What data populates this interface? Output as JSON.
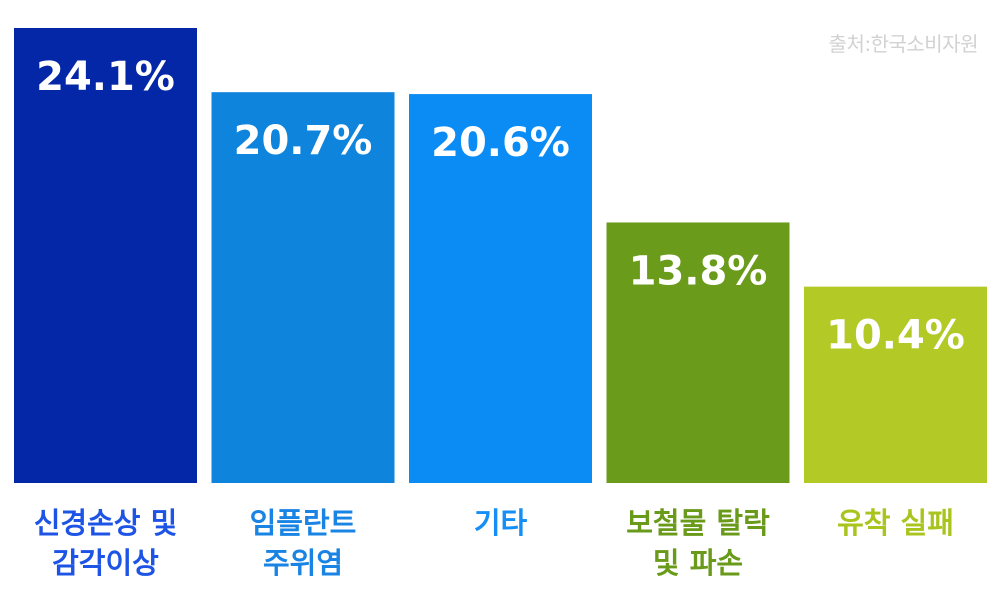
{
  "source_note": "출처:한국소비자원",
  "chart_data": {
    "type": "bar",
    "categories": [
      [
        "신경손상 및",
        "감각이상"
      ],
      [
        "임플란트",
        "주위염"
      ],
      [
        "기타"
      ],
      [
        "보철물 탈락",
        "및 파손"
      ],
      [
        "유착 실패"
      ]
    ],
    "values": [
      24.1,
      20.7,
      20.6,
      13.8,
      10.4
    ],
    "value_labels": [
      "24.1%",
      "20.7%",
      "20.6%",
      "13.8%",
      "10.4%"
    ],
    "colors": [
      "#0327a6",
      "#0e84dc",
      "#0a8cf4",
      "#6b9b1b",
      "#b3c926"
    ],
    "label_colors": [
      "#1d54e6",
      "#1984e3",
      "#158ef6",
      "#6a9a19",
      "#a9c41d"
    ],
    "value_label_color": "#ffffff",
    "ylim": [
      0,
      24.1
    ],
    "grid": false,
    "legend": "none",
    "title": "",
    "xlabel": "",
    "ylabel": ""
  }
}
